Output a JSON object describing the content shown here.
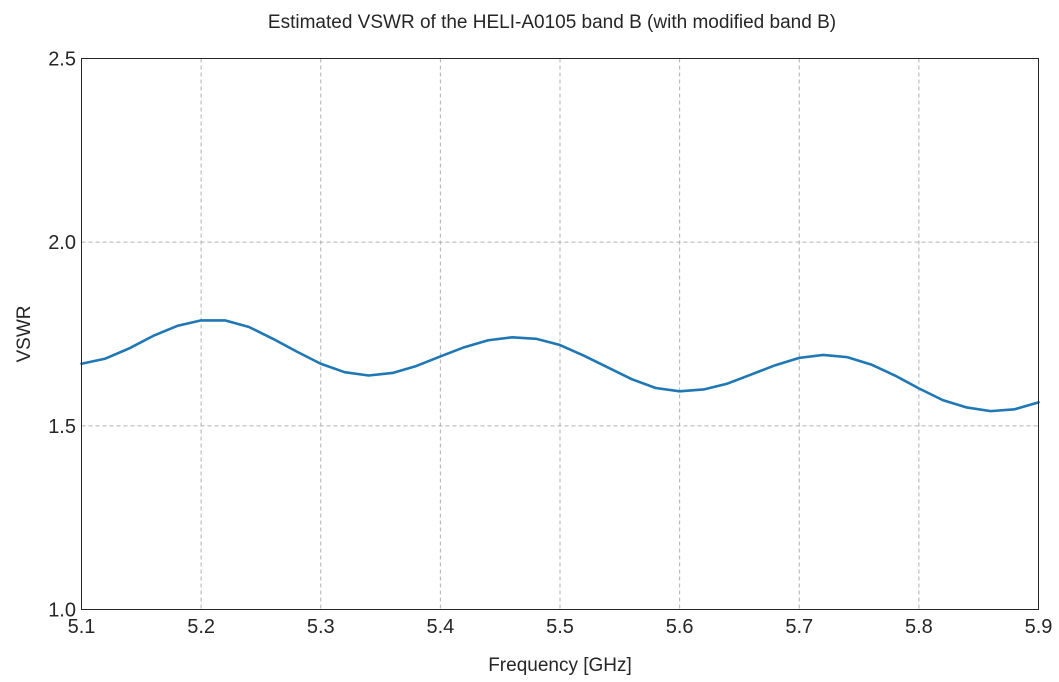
{
  "chart_data": {
    "type": "line",
    "title": "Estimated VSWR of the HELI-A0105 band B (with modified band B)",
    "xlabel": "Frequency [GHz]",
    "ylabel": "VSWR",
    "xlim": [
      5.1,
      5.9
    ],
    "ylim": [
      1.0,
      2.5
    ],
    "xticks": [
      5.1,
      5.2,
      5.3,
      5.4,
      5.5,
      5.6,
      5.7,
      5.8,
      5.9
    ],
    "xtick_labels": [
      "5.1",
      "5.2",
      "5.3",
      "5.4",
      "5.5",
      "5.6",
      "5.7",
      "5.8",
      "5.9"
    ],
    "yticks": [
      1.0,
      1.5,
      2.0,
      2.5
    ],
    "ytick_labels": [
      "1.0",
      "1.5",
      "2.0",
      "2.5"
    ],
    "grid": true,
    "series": [
      {
        "color": "#1f77b4",
        "x": [
          5.1,
          5.12,
          5.14,
          5.16,
          5.18,
          5.2,
          5.22,
          5.24,
          5.26,
          5.28,
          5.3,
          5.32,
          5.34,
          5.36,
          5.38,
          5.4,
          5.42,
          5.44,
          5.46,
          5.48,
          5.5,
          5.52,
          5.54,
          5.56,
          5.58,
          5.6,
          5.62,
          5.64,
          5.66,
          5.68,
          5.7,
          5.72,
          5.74,
          5.76,
          5.78,
          5.8,
          5.82,
          5.84,
          5.86,
          5.88,
          5.9
        ],
        "y": [
          1.669,
          1.683,
          1.711,
          1.745,
          1.772,
          1.787,
          1.787,
          1.769,
          1.737,
          1.702,
          1.669,
          1.646,
          1.637,
          1.644,
          1.663,
          1.689,
          1.714,
          1.733,
          1.741,
          1.737,
          1.72,
          1.691,
          1.659,
          1.627,
          1.603,
          1.594,
          1.599,
          1.615,
          1.64,
          1.665,
          1.685,
          1.693,
          1.687,
          1.667,
          1.637,
          1.602,
          1.57,
          1.55,
          1.54,
          1.545,
          1.564
        ]
      }
    ]
  }
}
